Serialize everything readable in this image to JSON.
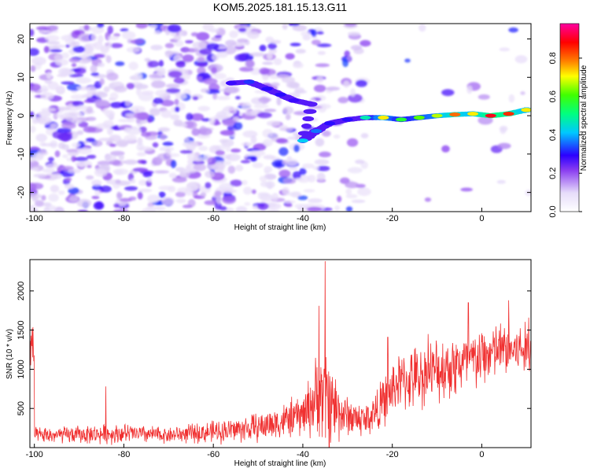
{
  "title": "KOM5.2025.181.15.13.G11",
  "chart_data": [
    {
      "type": "heatmap",
      "xlabel": "Height of straight line (km)",
      "ylabel": "Frequency (Hz)",
      "xlim": [
        -101,
        11
      ],
      "ylim": [
        -25,
        24
      ],
      "xticks": [
        -100,
        -80,
        -60,
        -40,
        -20,
        0
      ],
      "yticks": [
        -20,
        -10,
        0,
        10,
        20
      ],
      "grid": false,
      "colorbar": {
        "label": "Normalized spectral amplitude",
        "ticks": [
          0.0,
          0.2,
          0.4,
          0.6,
          0.8
        ],
        "tick_labels": [
          "0.0",
          "0.2",
          "0.4",
          "0.6",
          "0.8"
        ],
        "range": [
          0,
          0.98
        ],
        "colormap": [
          "#ffffff",
          "#d9c8f5",
          "#8a3df0",
          "#2b00ff",
          "#00c8ff",
          "#00ff80",
          "#40ff00",
          "#ffff00",
          "#ff8000",
          "#ff0000",
          "#ff00a0"
        ]
      },
      "ridge": [
        {
          "x": -56,
          "y": 8.5,
          "amp": 0.28
        },
        {
          "x": -52,
          "y": 8.8,
          "amp": 0.32
        },
        {
          "x": -48,
          "y": 7.0,
          "amp": 0.3
        },
        {
          "x": -45,
          "y": 5.5,
          "amp": 0.3
        },
        {
          "x": -42,
          "y": 4.0,
          "amp": 0.28
        },
        {
          "x": -38,
          "y": 3.0,
          "amp": 0.25
        },
        {
          "x": -40,
          "y": -6.5,
          "amp": 0.4
        },
        {
          "x": -37,
          "y": -4.0,
          "amp": 0.35
        },
        {
          "x": -34,
          "y": -2.0,
          "amp": 0.3
        },
        {
          "x": -30,
          "y": -1.0,
          "amp": 0.3
        },
        {
          "x": -26,
          "y": -0.5,
          "amp": 0.45
        },
        {
          "x": -22,
          "y": -0.5,
          "amp": 0.7
        },
        {
          "x": -18,
          "y": -1.0,
          "amp": 0.55
        },
        {
          "x": -14,
          "y": -0.5,
          "amp": 0.6
        },
        {
          "x": -10,
          "y": 0.0,
          "amp": 0.65
        },
        {
          "x": -6,
          "y": 0.3,
          "amp": 0.8
        },
        {
          "x": -2,
          "y": 0.5,
          "amp": 0.7
        },
        {
          "x": 2,
          "y": 0.0,
          "amp": 0.9
        },
        {
          "x": 6,
          "y": 0.5,
          "amp": 0.85
        },
        {
          "x": 10,
          "y": 1.5,
          "amp": 0.7
        }
      ]
    },
    {
      "type": "line",
      "xlabel": "Height of straight line (km)",
      "ylabel": "SNR (10 * v/v)",
      "xlim": [
        -101,
        11
      ],
      "ylim": [
        0,
        2400
      ],
      "xticks": [
        -100,
        -80,
        -60,
        -40,
        -20,
        0
      ],
      "yticks": [
        500,
        1000,
        1500,
        2000
      ],
      "grid": false,
      "color": "#f03030",
      "envelope": [
        {
          "x": -100,
          "base": 150,
          "amp": 120
        },
        {
          "x": -80,
          "base": 180,
          "amp": 150
        },
        {
          "x": -70,
          "base": 160,
          "amp": 120
        },
        {
          "x": -60,
          "base": 200,
          "amp": 170
        },
        {
          "x": -50,
          "base": 260,
          "amp": 220
        },
        {
          "x": -45,
          "base": 330,
          "amp": 260
        },
        {
          "x": -40,
          "base": 420,
          "amp": 330
        },
        {
          "x": -36,
          "base": 700,
          "amp": 700
        },
        {
          "x": -34,
          "base": 600,
          "amp": 800
        },
        {
          "x": -31,
          "base": 420,
          "amp": 320
        },
        {
          "x": -26,
          "base": 350,
          "amp": 260
        },
        {
          "x": -23,
          "base": 500,
          "amp": 350
        },
        {
          "x": -19,
          "base": 820,
          "amp": 430
        },
        {
          "x": -14,
          "base": 900,
          "amp": 480
        },
        {
          "x": -8,
          "base": 1030,
          "amp": 500
        },
        {
          "x": -2,
          "base": 1100,
          "amp": 480
        },
        {
          "x": 4,
          "base": 1250,
          "amp": 420
        },
        {
          "x": 11,
          "base": 1250,
          "amp": 400
        }
      ],
      "peaks": [
        {
          "x": -35.0,
          "y": 2380
        },
        {
          "x": -36.4,
          "y": 1810
        },
        {
          "x": -84.0,
          "y": 780
        },
        {
          "x": -3.0,
          "y": 1850
        },
        {
          "x": 6.0,
          "y": 1880
        },
        {
          "x": 10.5,
          "y": 1660
        },
        {
          "x": -21.0,
          "y": 1410
        },
        {
          "x": -12.0,
          "y": 1450
        }
      ]
    }
  ]
}
